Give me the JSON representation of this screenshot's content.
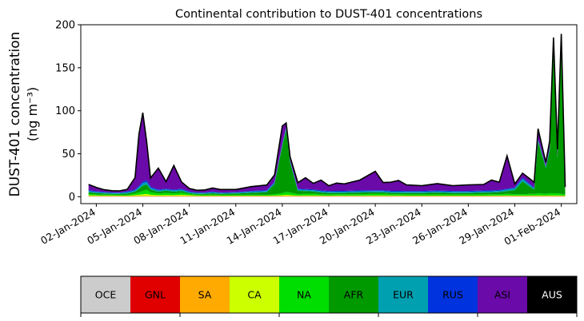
{
  "chart_data": {
    "type": "area",
    "title": "Continental contribution to DUST-401 concentrations",
    "ylabel_line1": "DUST-401 concentration",
    "ylabel_line2": "(ng m⁻³)",
    "xlabel": "",
    "ylim": [
      -8,
      200
    ],
    "xlim": [
      "2024-01-01T00:00",
      "2024-02-02T00:00"
    ],
    "y_ticks": [
      0,
      50,
      100,
      150,
      200
    ],
    "x_ticks": [
      "02-Jan-2024",
      "05-Jan-2024",
      "08-Jan-2024",
      "11-Jan-2024",
      "14-Jan-2024",
      "17-Jan-2024",
      "20-Jan-2024",
      "23-Jan-2024",
      "26-Jan-2024",
      "29-Jan-2024",
      "01-Feb-2024"
    ],
    "grid": false,
    "stacked": true,
    "x": [
      "2024-01-01T12:00",
      "2024-01-02T00:00",
      "2024-01-02T12:00",
      "2024-01-03T00:00",
      "2024-01-03T12:00",
      "2024-01-04T00:00",
      "2024-01-04T12:00",
      "2024-01-04T18:00",
      "2024-01-05T00:00",
      "2024-01-05T06:00",
      "2024-01-05T12:00",
      "2024-01-06T00:00",
      "2024-01-06T12:00",
      "2024-01-07T00:00",
      "2024-01-07T12:00",
      "2024-01-08T00:00",
      "2024-01-08T12:00",
      "2024-01-09T00:00",
      "2024-01-09T12:00",
      "2024-01-10T00:00",
      "2024-01-11T00:00",
      "2024-01-12T00:00",
      "2024-01-13T00:00",
      "2024-01-13T12:00",
      "2024-01-14T00:00",
      "2024-01-14T06:00",
      "2024-01-14T12:00",
      "2024-01-15T00:00",
      "2024-01-15T12:00",
      "2024-01-16T00:00",
      "2024-01-16T12:00",
      "2024-01-17T00:00",
      "2024-01-17T12:00",
      "2024-01-18T00:00",
      "2024-01-19T00:00",
      "2024-01-20T00:00",
      "2024-01-20T12:00",
      "2024-01-21T00:00",
      "2024-01-21T12:00",
      "2024-01-22T00:00",
      "2024-01-23T00:00",
      "2024-01-24T00:00",
      "2024-01-25T00:00",
      "2024-01-26T00:00",
      "2024-01-27T00:00",
      "2024-01-27T12:00",
      "2024-01-28T00:00",
      "2024-01-28T12:00",
      "2024-01-29T00:00",
      "2024-01-29T12:00",
      "2024-01-30T00:00",
      "2024-01-30T06:00",
      "2024-01-30T12:00",
      "2024-01-31T00:00",
      "2024-01-31T06:00",
      "2024-01-31T12:00",
      "2024-01-31T18:00",
      "2024-02-01T00:00",
      "2024-02-01T06:00"
    ],
    "series": [
      {
        "name": "OCE",
        "color": "#cccccc",
        "values": [
          0.3,
          0.3,
          0.3,
          0.3,
          0.3,
          0.3,
          0.3,
          0.3,
          0.3,
          0.3,
          0.3,
          0.3,
          0.3,
          0.3,
          0.3,
          0.3,
          0.3,
          0.3,
          0.3,
          0.3,
          0.3,
          0.3,
          0.3,
          0.3,
          0.3,
          0.3,
          0.3,
          0.3,
          0.3,
          0.3,
          0.3,
          0.3,
          0.3,
          0.3,
          0.3,
          0.3,
          0.3,
          0.3,
          0.3,
          0.3,
          0.3,
          0.3,
          0.3,
          0.3,
          0.3,
          0.3,
          0.3,
          0.3,
          0.3,
          0.3,
          0.3,
          0.3,
          0.3,
          0.3,
          0.3,
          0.3,
          0.3,
          0.3,
          0.3
        ]
      },
      {
        "name": "GNL",
        "color": "#e00000",
        "values": [
          0.2,
          0.2,
          0.2,
          0.2,
          0.2,
          0.2,
          0.2,
          0.2,
          0.2,
          0.2,
          0.2,
          0.2,
          0.2,
          0.2,
          0.2,
          0.2,
          0.2,
          0.2,
          0.2,
          0.2,
          0.2,
          0.2,
          0.2,
          0.2,
          0.2,
          0.2,
          0.2,
          0.2,
          0.2,
          0.2,
          0.2,
          0.2,
          0.2,
          0.2,
          0.2,
          0.2,
          0.2,
          0.2,
          0.2,
          0.2,
          0.2,
          0.2,
          0.2,
          0.2,
          0.2,
          0.2,
          0.2,
          0.2,
          0.2,
          0.2,
          0.2,
          0.2,
          0.2,
          0.2,
          0.2,
          0.2,
          0.2,
          0.2,
          0.2
        ]
      },
      {
        "name": "SA",
        "color": "#ffaa00",
        "values": [
          0.3,
          0.3,
          0.3,
          0.3,
          0.3,
          0.3,
          0.3,
          0.3,
          0.3,
          0.3,
          0.3,
          0.3,
          0.3,
          0.3,
          0.3,
          0.3,
          0.3,
          0.3,
          0.3,
          0.3,
          0.3,
          0.3,
          0.3,
          0.3,
          0.3,
          0.3,
          0.3,
          0.3,
          0.3,
          0.3,
          0.3,
          0.3,
          0.3,
          0.3,
          0.3,
          0.3,
          0.3,
          0.3,
          0.3,
          0.3,
          0.3,
          0.3,
          0.3,
          0.3,
          0.3,
          0.3,
          0.3,
          0.3,
          0.3,
          0.3,
          0.3,
          0.3,
          0.3,
          0.3,
          0.3,
          0.3,
          0.3,
          0.3,
          0.3
        ]
      },
      {
        "name": "CA",
        "color": "#ccff00",
        "values": [
          1,
          0.8,
          0.6,
          0.6,
          0.5,
          0.5,
          1,
          1.5,
          2,
          2.5,
          1.5,
          1,
          1.2,
          1,
          1.5,
          1,
          0.6,
          0.5,
          0.6,
          0.5,
          0.5,
          0.5,
          0.5,
          0.6,
          1,
          1.5,
          1.2,
          0.6,
          0.8,
          0.8,
          0.6,
          0.5,
          0.6,
          0.6,
          0.6,
          0.8,
          0.8,
          0.6,
          0.6,
          0.5,
          0.5,
          0.5,
          0.5,
          0.5,
          0.5,
          0.6,
          0.6,
          0.7,
          0.6,
          0.6,
          0.6,
          0.6,
          0.8,
          0.6,
          0.8,
          0.8,
          0.8,
          0.6,
          0.5
        ]
      },
      {
        "name": "NA",
        "color": "#00dd00",
        "values": [
          1.5,
          1.2,
          1,
          1,
          1,
          1,
          2,
          3,
          4,
          5,
          3,
          2,
          2.5,
          2,
          2.5,
          1.5,
          1,
          1,
          1.2,
          1,
          1,
          1.2,
          1,
          1.5,
          2.5,
          3.5,
          3,
          1.5,
          2,
          2,
          1.5,
          1.5,
          1.5,
          1.5,
          1.5,
          2,
          2,
          1.5,
          1.5,
          1.5,
          1.5,
          1.5,
          1.5,
          1.5,
          1.5,
          1.5,
          1.5,
          2,
          1.5,
          1.5,
          2,
          2,
          2.5,
          2,
          2.5,
          2.5,
          2.5,
          2,
          1.5
        ]
      },
      {
        "name": "AFR",
        "color": "#009900",
        "values": [
          2,
          1.5,
          1.5,
          1,
          1,
          1.5,
          2,
          4,
          6,
          6,
          3,
          2,
          2.5,
          2,
          2,
          1,
          1,
          1,
          1.5,
          1,
          1.5,
          2,
          3,
          12,
          55,
          72,
          35,
          4,
          3,
          2.5,
          2,
          1.5,
          1.5,
          1.5,
          2,
          1.5,
          1.5,
          1.5,
          1.5,
          1.5,
          1.5,
          2,
          1.5,
          1.5,
          2,
          2,
          2.5,
          3,
          5,
          15,
          8,
          5,
          60,
          30,
          50,
          170,
          40,
          175,
          3
        ]
      },
      {
        "name": "EUR",
        "color": "#00a0b0",
        "values": [
          1.5,
          1.2,
          1,
          1,
          1,
          1.5,
          1.5,
          2,
          3,
          3,
          2,
          1.5,
          1.5,
          1.5,
          1.5,
          1,
          1,
          1,
          1.2,
          1,
          1,
          1.5,
          1.5,
          1.5,
          2,
          2,
          1.5,
          1.5,
          1.5,
          1.5,
          1.5,
          1.5,
          1.5,
          1.5,
          1.5,
          1.5,
          1.5,
          1.5,
          1.5,
          1.5,
          1.5,
          1.5,
          1.5,
          1.5,
          1.5,
          1.5,
          1.5,
          2,
          2,
          3,
          2,
          1.5,
          2,
          1.5,
          2,
          2,
          2,
          2,
          1
        ]
      },
      {
        "name": "RUS",
        "color": "#0033dd",
        "values": [
          1,
          0.8,
          0.8,
          0.6,
          0.6,
          0.8,
          1,
          1.5,
          2,
          2,
          1.5,
          1,
          1,
          1,
          1,
          0.8,
          0.6,
          0.6,
          0.8,
          0.6,
          0.6,
          0.8,
          0.8,
          1,
          1,
          1,
          1,
          1,
          1,
          1,
          1,
          1,
          1,
          1,
          1,
          1,
          1,
          1,
          1,
          1,
          1,
          1,
          1,
          1,
          1,
          1,
          1,
          1,
          1,
          1.5,
          1,
          1,
          1,
          1,
          1,
          1,
          1,
          1,
          0.5
        ]
      },
      {
        "name": "ASI",
        "color": "#6a0aa8",
        "values": [
          6.5,
          4.5,
          2.5,
          2,
          2,
          2.5,
          14,
          60,
          80,
          45,
          10,
          25,
          8,
          28,
          8,
          3.5,
          2.5,
          3,
          4,
          3.5,
          3,
          5,
          6,
          8,
          20,
          5,
          4,
          7,
          13,
          7,
          12,
          6,
          9,
          8,
          12,
          22,
          9,
          10,
          12,
          7,
          6,
          8,
          6,
          7,
          7,
          12,
          9,
          38,
          4,
          5,
          6,
          6,
          12,
          4,
          8,
          8,
          8,
          8,
          4
        ]
      },
      {
        "name": "AUS",
        "color": "#000000",
        "values": [
          0,
          0,
          0,
          0,
          0,
          0,
          0,
          0,
          0,
          0,
          0,
          0,
          0,
          0,
          0,
          0,
          0,
          0,
          0,
          0,
          0,
          0,
          0,
          0,
          0,
          0,
          0,
          0,
          0,
          0,
          0,
          0,
          0,
          0,
          0,
          0,
          0,
          0,
          0,
          0,
          0,
          0,
          0,
          0,
          0,
          0,
          0,
          0,
          0,
          0,
          0,
          0,
          0,
          0,
          0,
          0,
          0,
          0,
          0
        ]
      }
    ],
    "legend": {
      "placement": "bottom",
      "entries": [
        {
          "label": "OCE",
          "color": "#cccccc",
          "text_color": "#000000"
        },
        {
          "label": "GNL",
          "color": "#e00000",
          "text_color": "#000000"
        },
        {
          "label": "SA",
          "color": "#ffaa00",
          "text_color": "#000000"
        },
        {
          "label": "CA",
          "color": "#ccff00",
          "text_color": "#000000"
        },
        {
          "label": "NA",
          "color": "#00dd00",
          "text_color": "#000000"
        },
        {
          "label": "AFR",
          "color": "#009900",
          "text_color": "#000000"
        },
        {
          "label": "EUR",
          "color": "#00a0b0",
          "text_color": "#000000"
        },
        {
          "label": "RUS",
          "color": "#0033dd",
          "text_color": "#000000"
        },
        {
          "label": "ASI",
          "color": "#6a0aa8",
          "text_color": "#000000"
        },
        {
          "label": "AUS",
          "color": "#000000",
          "text_color": "#ffffff"
        }
      ]
    }
  }
}
